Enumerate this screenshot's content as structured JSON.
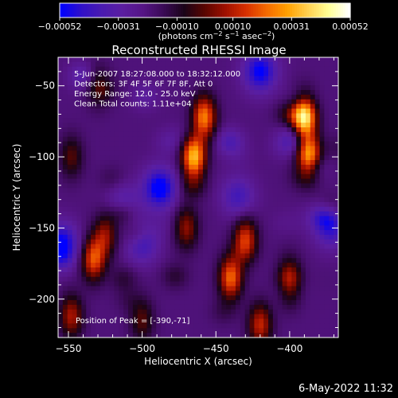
{
  "chart_data": {
    "type": "heatmap",
    "title": "Reconstructed RHESSI Image",
    "xlabel": "Heliocentric X (arcsec)",
    "ylabel": "Heliocentric Y (arcsec)",
    "xlim": [
      -557,
      -367
    ],
    "ylim": [
      -227,
      -30
    ],
    "x_ticks": [
      -550,
      -500,
      -450,
      -400
    ],
    "x_tick_labels": [
      "−550",
      "−500",
      "−450",
      "−400"
    ],
    "y_ticks": [
      -50,
      -100,
      -150,
      -200
    ],
    "y_tick_labels": [
      "−50",
      "−100",
      "−150",
      "−200"
    ],
    "colorbar": {
      "range": [
        -0.00052,
        0.00052
      ],
      "ticks": [
        -0.00052,
        -0.00031,
        -0.0001,
        0.0001,
        0.00031,
        0.00052
      ],
      "tick_labels": [
        "−0.00052",
        "−0.00031",
        "−0.00010",
        "0.00010",
        "0.00031",
        "0.00052"
      ],
      "unit_parts": [
        "(photons cm",
        "−2",
        " s",
        "−1",
        " asec",
        "−2",
        ")"
      ]
    },
    "colormap": [
      "#0000ff",
      "#3010c8",
      "#4a1bb0",
      "#5b1ea0",
      "#551585",
      "#3a0a55",
      "#1a0418",
      "#5a0500",
      "#a01000",
      "#d83000",
      "#f56a00",
      "#ffa000",
      "#ffd050",
      "#ffff96",
      "#ffffff"
    ],
    "annotations": [
      "5-Jun-2007 18:27:08.000 to 18:32:12.000",
      "Detectors: 3F 4F 5F 6F 7F 8F, Att 0",
      "Energy Range: 12.0 - 25.0 keV",
      "Clean     Total counts: 1.11e+04"
    ],
    "peak_label": "Position of Peak = [-390,-71]",
    "peak": [
      -390,
      -71
    ],
    "sources": [
      {
        "x": -390,
        "y": -71,
        "amp": 1.0
      },
      {
        "x": -387,
        "y": -100,
        "amp": 0.85
      },
      {
        "x": -465,
        "y": -100,
        "amp": 0.85
      },
      {
        "x": -458,
        "y": -72,
        "amp": 0.7
      },
      {
        "x": -533,
        "y": -172,
        "amp": 0.6
      },
      {
        "x": -525,
        "y": -155,
        "amp": 0.4
      },
      {
        "x": -440,
        "y": -185,
        "amp": 0.65
      },
      {
        "x": -430,
        "y": -158,
        "amp": 0.55
      },
      {
        "x": -400,
        "y": -188,
        "amp": 0.55
      },
      {
        "x": -470,
        "y": -150,
        "amp": 0.4
      },
      {
        "x": -548,
        "y": -212,
        "amp": 0.45
      },
      {
        "x": -420,
        "y": -218,
        "amp": 0.5
      },
      {
        "x": -500,
        "y": -215,
        "amp": 0.3
      },
      {
        "x": -548,
        "y": -100,
        "amp": 0.3
      },
      {
        "x": -530,
        "y": -50,
        "amp": 0.25
      }
    ],
    "negatives": [
      {
        "x": -420,
        "y": -40,
        "amp": 0.5
      },
      {
        "x": -488,
        "y": -122,
        "amp": 0.55
      },
      {
        "x": -555,
        "y": -162,
        "amp": 0.6
      },
      {
        "x": -512,
        "y": -135,
        "amp": 0.3
      },
      {
        "x": -500,
        "y": -160,
        "amp": 0.35
      },
      {
        "x": -372,
        "y": -150,
        "amp": 0.35
      },
      {
        "x": -435,
        "y": -128,
        "amp": 0.3
      }
    ]
  },
  "footer": {
    "timestamp": "6-May-2022 11:32"
  }
}
